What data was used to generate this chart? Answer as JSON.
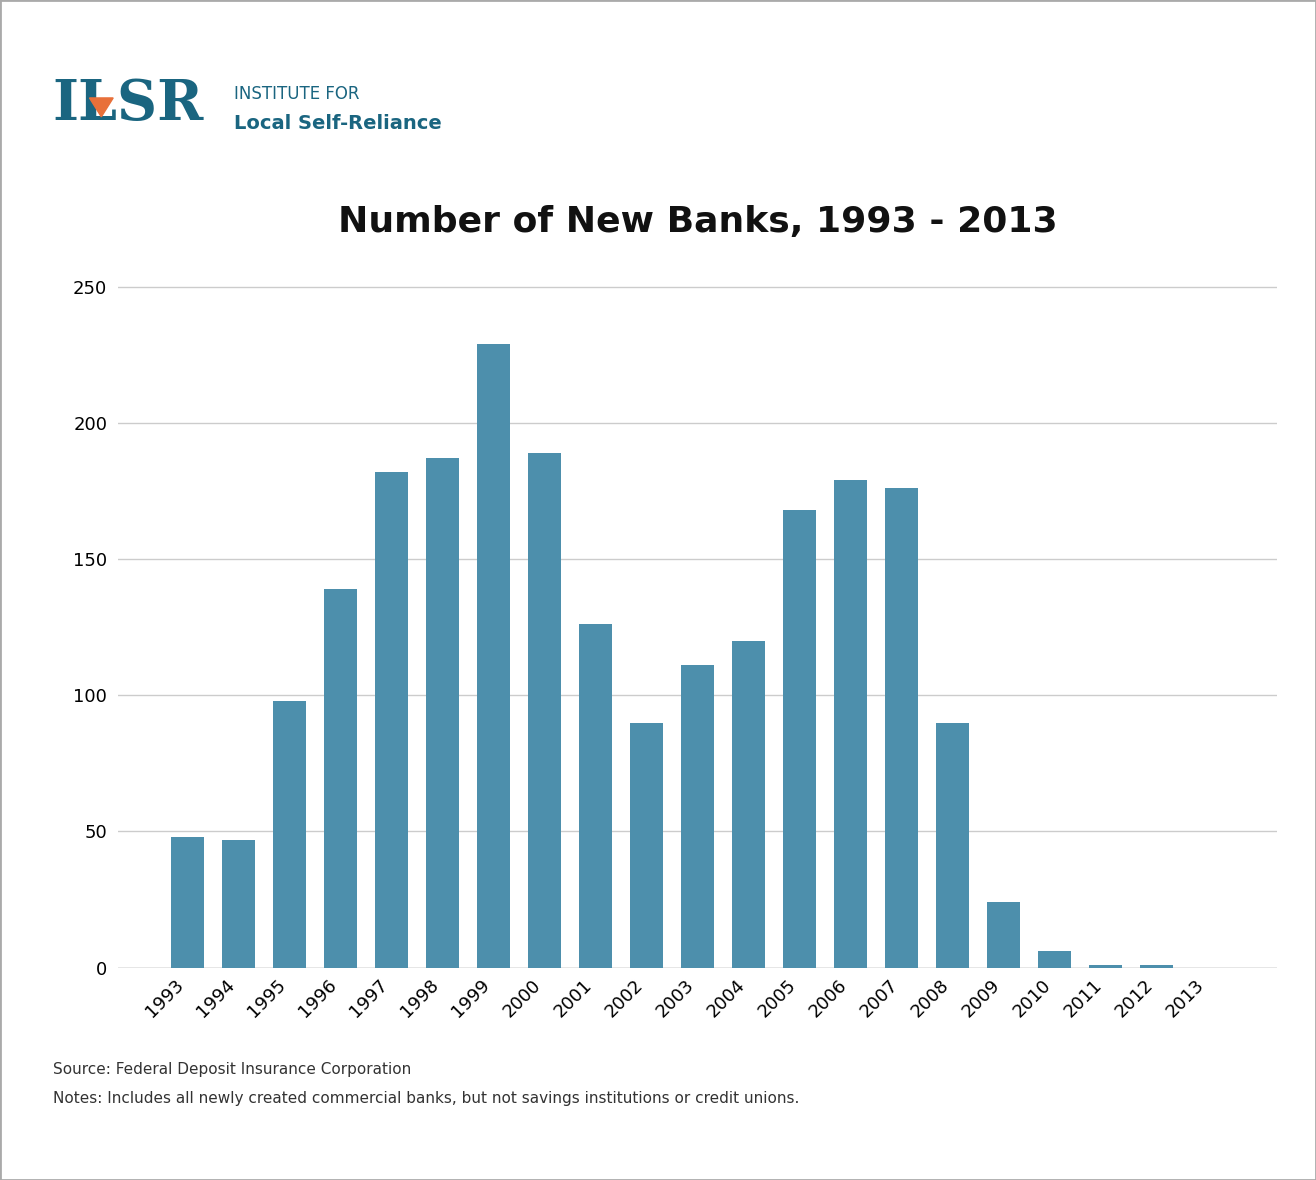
{
  "title": "Number of New Banks, 1993 - 2013",
  "categories": [
    "1993",
    "1994",
    "1995",
    "1996",
    "1997",
    "1998",
    "1999",
    "2000",
    "2001",
    "2002",
    "2003",
    "2004",
    "2005",
    "2006",
    "2007",
    "2008",
    "2009",
    "2010",
    "2011",
    "2012",
    "2013"
  ],
  "values": [
    48,
    47,
    98,
    139,
    182,
    187,
    229,
    189,
    126,
    90,
    111,
    120,
    168,
    179,
    176,
    90,
    24,
    6,
    1,
    1,
    0
  ],
  "bar_color": "#4d8fac",
  "background_color": "#ffffff",
  "ylim": [
    0,
    260
  ],
  "yticks": [
    0,
    50,
    100,
    150,
    200,
    250
  ],
  "title_fontsize": 26,
  "tick_fontsize": 13,
  "source_text": "Source: Federal Deposit Insurance Corporation",
  "notes_text": "Notes: Includes all newly created commercial banks, but not savings institutions or credit unions.",
  "logo_text_top": "INSTITUTE FOR",
  "logo_text_bottom": "Local Self-Reliance",
  "logo_letters": "ILSR",
  "logo_color": "#1a6580",
  "logo_orange": "#e8703a",
  "grid_color": "#cccccc",
  "border_color": "#aaaaaa"
}
